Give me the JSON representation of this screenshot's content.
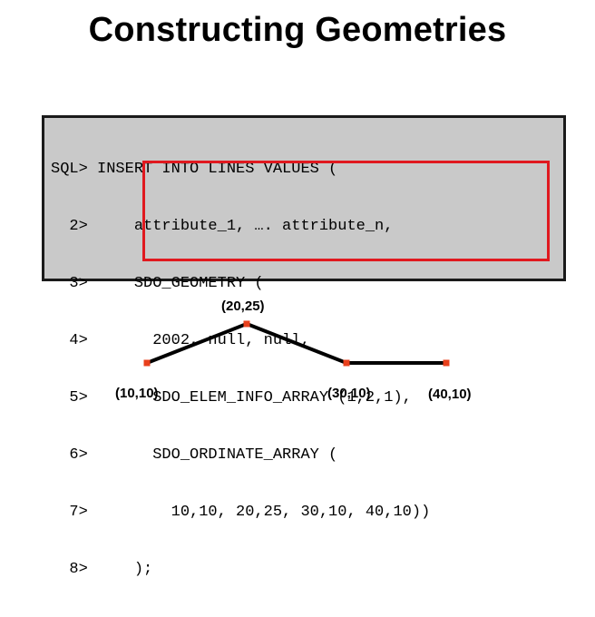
{
  "title": "Constructing Geometries",
  "code_lines": [
    {
      "text": "SQL> INSERT INTO LINES VALUES ("
    },
    {
      "text": "  2>     attribute_1, …. attribute_n,"
    },
    {
      "text": "  3>     SDO_GEOMETRY ("
    },
    {
      "text": "  4>       2002, null, null,"
    },
    {
      "text": "  5>       SDO_ELEM_INFO_ARRAY (1,2,1),"
    },
    {
      "text": "  6>       SDO_ORDINATE_ARRAY ("
    },
    {
      "text": "  7>         10,10, 20,25, 30,10, 40,10))"
    },
    {
      "text": "  8>     );"
    }
  ],
  "line_diagram": {
    "line_color": "#000000",
    "vertex_color": "#e8401c",
    "points": [
      {
        "x": 10,
        "y": 10,
        "label": "(10,10)"
      },
      {
        "x": 20,
        "y": 25,
        "label": "(20,25)"
      },
      {
        "x": 30,
        "y": 10,
        "label": "(30,10)"
      },
      {
        "x": 40,
        "y": 10,
        "label": "(40,10)"
      }
    ]
  },
  "colors": {
    "highlight": "#e0191f",
    "code_background": "#c9c9c9"
  }
}
